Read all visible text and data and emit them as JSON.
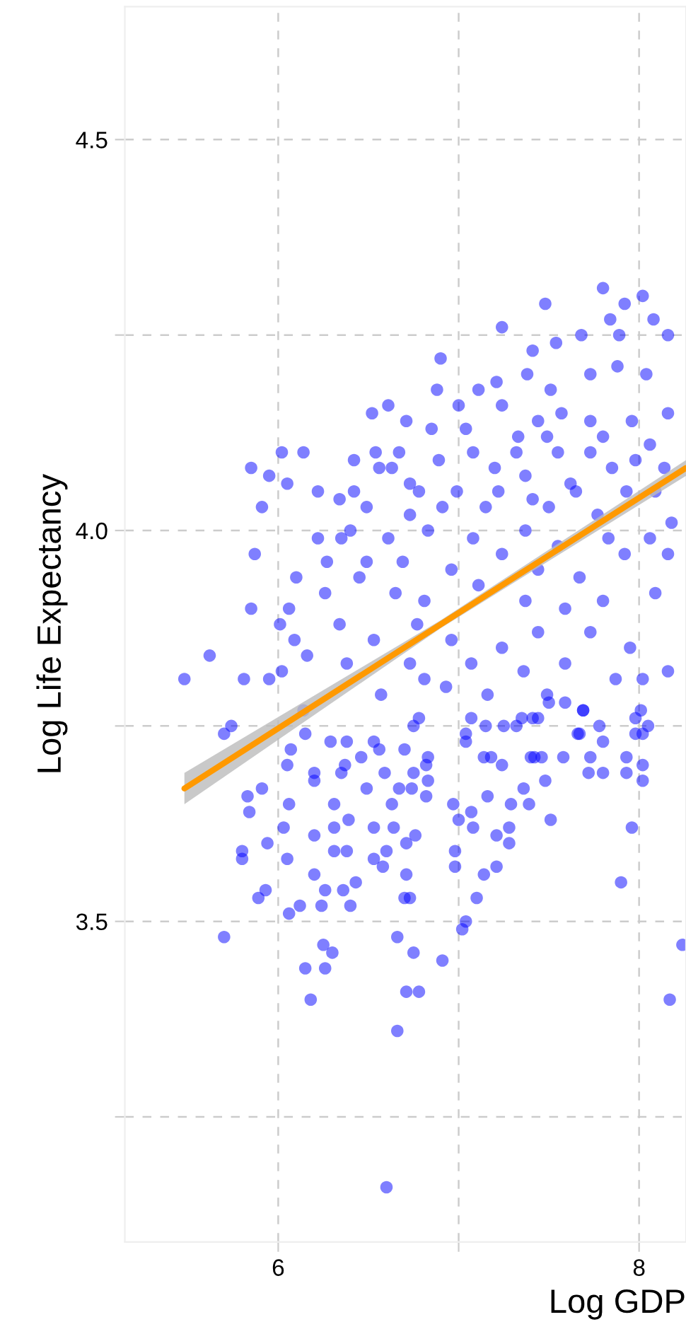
{
  "chart_data": {
    "type": "scatter",
    "xlabel": "Log GDP",
    "ylabel": "Log Life Expectancy",
    "xlim": [
      5.15,
      8.26
    ],
    "ylim": [
      3.09,
      4.67
    ],
    "xticks": [
      6,
      {
        "value": 7,
        "label": null
      },
      8
    ],
    "yticks": [
      {
        "value": 3.25,
        "label": null
      },
      {
        "value": 3.5,
        "label": "3.5"
      },
      {
        "value": 3.75,
        "label": null
      },
      {
        "value": 4.0,
        "label": "4.0"
      },
      {
        "value": 4.25,
        "label": null
      },
      4.5
    ],
    "grid": true,
    "legend": false,
    "series": [
      {
        "color": "#0000ff",
        "marker": "circle",
        "x": [
          5.85,
          6.02,
          5.95,
          6.05,
          5.91,
          5.87,
          5.85,
          5.62,
          5.48,
          5.81,
          5.74,
          5.7,
          6.61,
          6.52,
          6.71,
          6.42,
          6.54,
          6.63,
          6.67,
          6.56,
          6.06,
          6.01,
          6.09,
          6.16,
          6.02,
          5.95,
          6.27,
          6.35,
          6.4,
          5.7,
          6.66,
          6.6,
          6.18,
          6.15,
          6.26,
          6.25,
          6.3,
          6.66,
          6.75,
          6.91,
          6.71,
          6.78,
          5.89,
          5.93,
          5.8,
          5.8,
          5.94,
          6.03,
          6.05,
          5.84,
          5.83,
          5.91,
          6.06,
          6.2,
          6.2,
          6.26,
          6.06,
          6.12,
          6.24,
          6.4,
          6.43,
          6.36,
          6.31,
          6.38,
          6.31,
          6.31,
          6.39,
          6.53,
          6.64,
          6.76,
          6.71,
          6.6,
          6.53,
          6.58,
          6.71,
          6.7,
          6.73,
          6.63,
          6.67,
          6.74,
          6.82,
          6.07,
          6.05,
          6.2,
          6.2,
          6.35,
          6.49,
          6.59,
          6.75,
          6.83,
          6.37,
          6.46,
          6.56,
          6.7,
          6.82,
          6.38,
          6.53,
          6.75,
          6.15,
          6.29,
          8.17,
          8.24,
          7.9,
          7.96,
          7.51,
          7.02,
          7.04,
          7.1,
          7.14,
          7.21,
          6.98,
          6.98,
          7.21,
          7.28,
          7.28,
          7.08,
          7.07,
          7.0,
          6.97,
          7.16,
          7.29,
          7.39,
          7.36,
          7.48,
          7.8,
          7.72,
          7.93,
          8.02,
          7.93,
          7.73,
          7.58,
          7.46,
          7.4,
          7.24,
          7.14,
          7.04,
          7.8,
          7.66,
          8.02,
          8.05,
          7.78,
          7.98,
          7.69,
          7.59,
          7.5,
          7.32,
          7.25,
          7.15,
          7.07,
          7.35,
          7.44,
          7.8,
          7.48,
          7.24,
          6.9,
          7.54,
          7.41,
          7.68,
          7.89,
          8.02,
          8.08,
          7.92,
          7.84,
          8.16,
          6.88,
          7.11,
          7.21,
          7.38,
          7.51,
          7.73,
          7.88,
          8.04,
          7.0,
          7.24,
          7.44,
          7.57,
          7.73,
          7.96,
          8.16,
          6.85,
          7.04,
          7.33,
          7.49,
          7.8,
          8.06,
          7.08,
          7.32,
          7.55,
          7.73,
          7.98,
          6.89,
          7.2,
          7.37,
          7.62,
          7.85,
          8.14,
          6.78,
          6.99,
          7.22,
          7.41,
          7.65,
          7.93,
          8.09,
          6.91,
          7.15,
          7.5,
          7.77,
          8.18,
          6.83,
          7.08,
          7.37,
          7.55,
          7.83,
          8.06,
          6.96,
          7.24,
          7.44,
          7.67,
          7.92,
          8.16,
          6.81,
          7.11,
          7.37,
          7.59,
          7.8,
          8.09,
          6.96,
          7.24,
          7.44,
          7.73,
          7.95,
          8.16,
          7.07,
          7.36,
          7.59,
          7.87,
          8.02,
          6.93,
          7.16,
          7.49,
          7.69,
          8.01,
          6.78,
          7.04,
          7.41,
          7.67,
          7.98,
          6.83,
          7.18,
          7.42,
          6.14,
          6.22,
          6.34,
          6.49,
          6.61,
          6.73,
          6.26,
          6.45,
          6.65,
          6.77,
          6.14,
          6.38,
          6.57,
          6.73,
          6.53,
          6.34,
          6.81,
          6.69,
          6.49,
          6.22,
          6.1,
          6.73,
          6.42,
          8.02
        ],
        "values": [
          4.08,
          4.1,
          4.07,
          4.06,
          4.03,
          3.97,
          3.9,
          3.84,
          3.81,
          3.81,
          3.75,
          3.74,
          4.16,
          4.15,
          4.14,
          4.09,
          4.1,
          4.08,
          4.1,
          4.08,
          3.9,
          3.88,
          3.86,
          3.84,
          3.82,
          3.81,
          3.96,
          3.99,
          4.0,
          3.48,
          3.36,
          3.16,
          3.4,
          3.44,
          3.44,
          3.47,
          3.46,
          3.48,
          3.46,
          3.45,
          3.41,
          3.41,
          3.53,
          3.54,
          3.58,
          3.59,
          3.6,
          3.62,
          3.58,
          3.64,
          3.66,
          3.67,
          3.65,
          3.61,
          3.56,
          3.54,
          3.51,
          3.52,
          3.52,
          3.52,
          3.55,
          3.54,
          3.59,
          3.59,
          3.62,
          3.65,
          3.63,
          3.62,
          3.62,
          3.61,
          3.6,
          3.59,
          3.58,
          3.57,
          3.56,
          3.53,
          3.53,
          3.65,
          3.67,
          3.67,
          3.66,
          3.72,
          3.7,
          3.68,
          3.69,
          3.69,
          3.67,
          3.69,
          3.69,
          3.68,
          3.7,
          3.71,
          3.72,
          3.72,
          3.7,
          3.73,
          3.73,
          3.75,
          3.74,
          3.73,
          3.4,
          3.47,
          3.55,
          3.62,
          3.63,
          3.49,
          3.5,
          3.53,
          3.56,
          3.57,
          3.57,
          3.59,
          3.61,
          3.6,
          3.62,
          3.62,
          3.64,
          3.63,
          3.65,
          3.66,
          3.65,
          3.65,
          3.67,
          3.68,
          3.69,
          3.69,
          3.69,
          3.68,
          3.71,
          3.71,
          3.71,
          3.71,
          3.71,
          3.7,
          3.71,
          3.73,
          3.73,
          3.74,
          3.74,
          3.75,
          3.75,
          3.76,
          3.77,
          3.78,
          3.78,
          3.75,
          3.75,
          3.75,
          3.76,
          3.76,
          3.76,
          4.31,
          4.29,
          4.26,
          4.22,
          4.24,
          4.23,
          4.25,
          4.25,
          4.3,
          4.27,
          4.29,
          4.27,
          4.25,
          4.18,
          4.18,
          4.19,
          4.2,
          4.18,
          4.2,
          4.21,
          4.2,
          4.16,
          4.16,
          4.14,
          4.15,
          4.14,
          4.14,
          4.15,
          4.13,
          4.13,
          4.12,
          4.12,
          4.12,
          4.11,
          4.1,
          4.1,
          4.1,
          4.1,
          4.09,
          4.09,
          4.08,
          4.07,
          4.06,
          4.08,
          4.08,
          4.05,
          4.05,
          4.05,
          4.04,
          4.05,
          4.05,
          4.05,
          4.03,
          4.03,
          4.03,
          4.02,
          4.01,
          4.0,
          3.99,
          4.0,
          3.98,
          3.99,
          3.99,
          3.95,
          3.97,
          3.95,
          3.94,
          3.97,
          3.97,
          3.91,
          3.93,
          3.91,
          3.9,
          3.91,
          3.92,
          3.86,
          3.85,
          3.87,
          3.87,
          3.85,
          3.82,
          3.83,
          3.82,
          3.83,
          3.81,
          3.81,
          3.8,
          3.79,
          3.79,
          3.77,
          3.77,
          3.76,
          3.74,
          3.76,
          3.74,
          3.74,
          3.71,
          3.71,
          3.71,
          4.1,
          4.05,
          4.04,
          4.03,
          3.99,
          4.06,
          3.92,
          3.94,
          3.92,
          3.88,
          3.77,
          3.83,
          3.79,
          3.83,
          3.86,
          3.88,
          3.81,
          3.96,
          3.96,
          3.99,
          3.94,
          4.02,
          4.05,
          3.7
        ]
      },
      {
        "type": "line",
        "marker": "none",
        "color": "#ff9900",
        "x": [
          5.48,
          6.9,
          8.26
        ],
        "values": [
          3.67,
          3.88,
          4.08
        ],
        "lower": [
          3.65,
          3.875,
          4.07
        ],
        "upper": [
          3.69,
          3.885,
          4.09
        ]
      }
    ]
  }
}
